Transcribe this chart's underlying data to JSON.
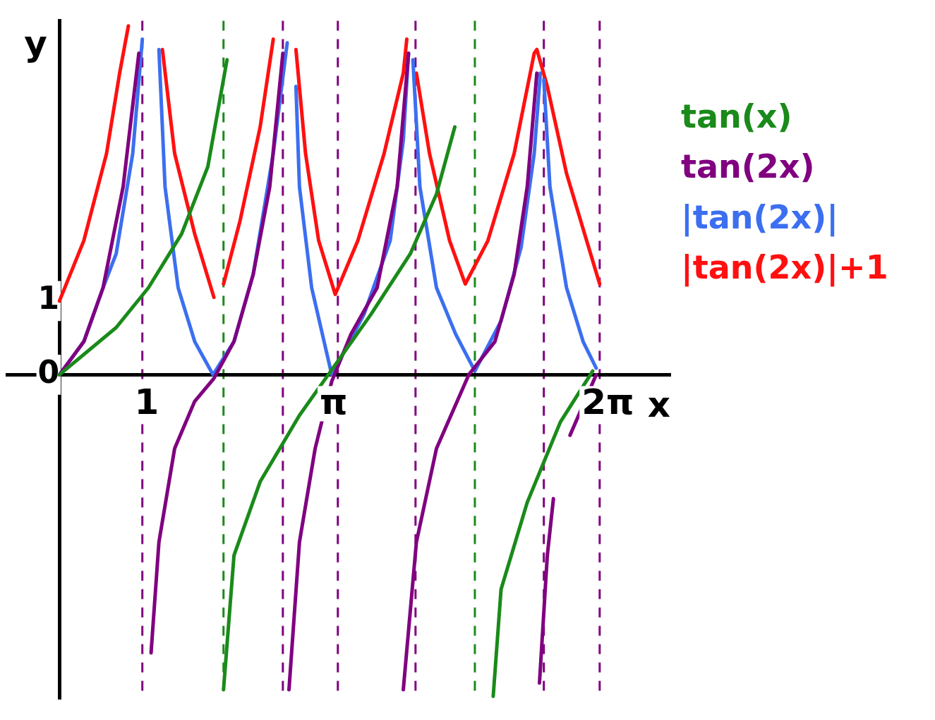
{
  "chart_data": {
    "type": "line",
    "xlabel": "x",
    "ylabel": "y",
    "xlim": [
      -0.6,
      7.0
    ],
    "ylim": [
      -4.4,
      4.8
    ],
    "xticks": [
      {
        "value": 0,
        "label": null
      },
      1,
      {
        "value": 3.1416,
        "label": "π"
      },
      {
        "value": 6.2832,
        "label": "2π"
      }
    ],
    "yticks": [
      0,
      1
    ],
    "grid": false,
    "legend": "right",
    "marker": "none",
    "line_style": "solid",
    "series": [
      {
        "name": "tan(x)",
        "color": "#1a8a1a",
        "x": [
          0,
          0.65,
          1.02,
          1.4,
          1.7,
          1.92,
          null,
          1.88,
          2.0,
          2.3,
          2.75,
          3.08,
          3.57,
          4.02,
          4.32,
          4.53,
          null,
          4.97,
          5.06,
          5.36,
          5.74,
          6.11
        ],
        "values": [
          0,
          0.64,
          1.18,
          1.91,
          2.82,
          4.27,
          null,
          -4.27,
          -2.45,
          -1.45,
          -0.55,
          0,
          0.82,
          1.64,
          2.45,
          3.36,
          null,
          -4.36,
          -2.91,
          -1.73,
          -0.64,
          0.05
        ]
      },
      {
        "name": "tan(2x)",
        "color": "#800080",
        "x": [
          0,
          0.28,
          0.5,
          0.73,
          0.91,
          null,
          1.05,
          1.14,
          1.32,
          1.55,
          1.77,
          2.0,
          2.22,
          2.41,
          2.56,
          null,
          2.63,
          2.75,
          2.93,
          3.12,
          3.34,
          3.64,
          3.87,
          4.0,
          null,
          3.94,
          4.09,
          4.32,
          4.69,
          4.99,
          5.21,
          5.36,
          5.47,
          null,
          5.5,
          5.59,
          5.66,
          null,
          5.85,
          6.15
        ],
        "values": [
          0,
          0.45,
          1.18,
          2.55,
          4.36,
          null,
          -3.77,
          -2.27,
          -1.0,
          -0.36,
          -0.05,
          0.45,
          1.36,
          2.55,
          4.36,
          null,
          -4.27,
          -2.27,
          -1.0,
          -0.09,
          0.55,
          1.18,
          2.55,
          4.36,
          null,
          -4.27,
          -2.27,
          -1.0,
          0,
          0.45,
          1.36,
          2.55,
          4.09,
          null,
          -4.18,
          -2.45,
          -1.68,
          null,
          -0.82,
          0
        ]
      },
      {
        "name": "|tan(2x)|",
        "color": "#3c6ff0",
        "x": [
          0,
          0.28,
          0.5,
          0.65,
          0.84,
          0.95,
          null,
          1.14,
          1.21,
          1.36,
          1.55,
          1.76,
          2.0,
          2.22,
          2.45,
          2.61,
          null,
          2.71,
          2.75,
          2.89,
          3.12,
          3.49,
          3.79,
          3.94,
          4.0,
          null,
          4.05,
          4.13,
          4.32,
          4.54,
          4.76,
          5.06,
          5.29,
          5.44,
          5.51,
          null,
          5.55,
          5.62,
          5.81,
          6.0,
          6.15
        ],
        "values": [
          0,
          0.45,
          1.18,
          1.64,
          3.0,
          4.55,
          null,
          4.41,
          2.55,
          1.18,
          0.45,
          0,
          0.45,
          1.36,
          3.0,
          4.5,
          null,
          3.91,
          2.55,
          1.18,
          0,
          0.82,
          1.82,
          3.18,
          4.36,
          null,
          4.27,
          2.55,
          1.18,
          0.55,
          0.05,
          0.73,
          1.73,
          3.0,
          4.09,
          null,
          4.0,
          2.55,
          1.18,
          0.45,
          0.09
        ]
      },
      {
        "name": "|tan(2x)|+1",
        "color": "#ff1010",
        "x": [
          0,
          0.28,
          0.54,
          0.69,
          0.79,
          null,
          1.18,
          1.32,
          1.55,
          1.77,
          null,
          1.88,
          2.07,
          2.3,
          2.45,
          null,
          2.71,
          2.82,
          2.97,
          3.16,
          3.42,
          3.72,
          3.94,
          3.98,
          null,
          4.09,
          4.24,
          4.47,
          4.65,
          4.91,
          5.21,
          5.44,
          5.47,
          5.59,
          5.81,
          6.04,
          6.19
        ],
        "values": [
          1.0,
          1.82,
          3.0,
          4.09,
          4.73,
          null,
          4.41,
          3.0,
          1.91,
          1.05,
          null,
          1.23,
          2.09,
          3.36,
          4.55,
          null,
          4.41,
          3.0,
          1.82,
          1.09,
          1.82,
          3.0,
          4.09,
          4.55,
          null,
          4.09,
          3.0,
          1.82,
          1.23,
          1.82,
          3.0,
          4.36,
          4.41,
          3.91,
          2.73,
          1.82,
          1.23
        ]
      }
    ],
    "ref_lines": [
      {
        "axis": "x",
        "value": 1.88,
        "color": "#1a8a1a",
        "line_style": "dashed"
      },
      {
        "axis": "x",
        "value": 4.76,
        "color": "#1a8a1a",
        "line_style": "dashed"
      },
      {
        "axis": "x",
        "value": 0.95,
        "color": "#800080",
        "line_style": "dashed"
      },
      {
        "axis": "x",
        "value": 2.56,
        "color": "#800080",
        "line_style": "dashed"
      },
      {
        "axis": "x",
        "value": 3.19,
        "color": "#800080",
        "line_style": "dashed"
      },
      {
        "axis": "x",
        "value": 4.08,
        "color": "#800080",
        "line_style": "dashed"
      },
      {
        "axis": "x",
        "value": 5.55,
        "color": "#800080",
        "line_style": "dashed"
      },
      {
        "axis": "x",
        "value": 6.19,
        "color": "#800080",
        "line_style": "dashed"
      }
    ]
  }
}
